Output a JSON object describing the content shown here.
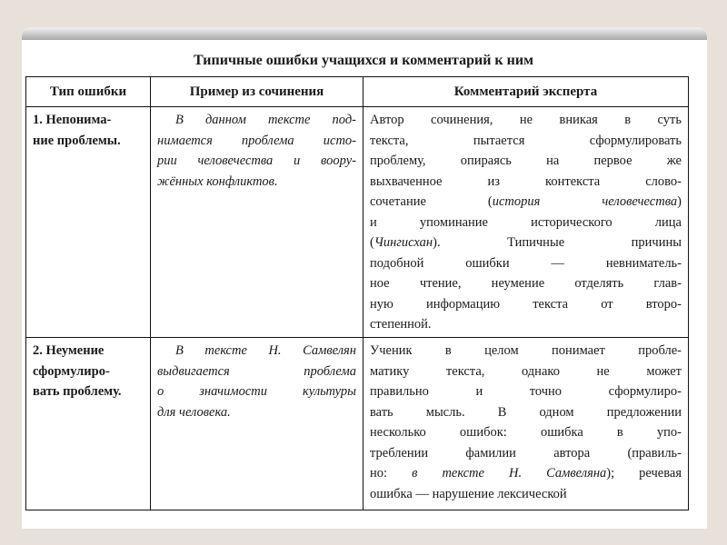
{
  "title": "Типичные ошибки учащихся и комментарий к ним",
  "headers": [
    "Тип ошибки",
    "Пример из сочинения",
    "Комментарий эксперта"
  ],
  "rows": [
    {
      "type": [
        [
          "1. Непонима-"
        ],
        [
          "ние проблемы."
        ]
      ],
      "example": [
        [
          "В данном тексте под-"
        ],
        [
          "нимается проблема исто-"
        ],
        [
          "рии человечества и воору-"
        ],
        [
          "жённых конфликтов."
        ]
      ],
      "comment": [
        [
          "Автор сочинения, не вникая в суть"
        ],
        [
          "текста, пытается сформулировать"
        ],
        [
          "проблему, опираясь на первое же"
        ],
        [
          "выхваченное из контекста слово-"
        ],
        [
          "сочетание (",
          "история человечества",
          ")"
        ],
        [
          "и упоминание исторического лица"
        ],
        [
          "(",
          "Чингисхан",
          "). Типичные причины"
        ],
        [
          "подобной ошибки — невниматель-"
        ],
        [
          "ное чтение, неумение отделять глав-"
        ],
        [
          "ную информацию текста от второ-"
        ],
        [
          "степенной."
        ]
      ]
    },
    {
      "type": [
        [
          "2. Неумение"
        ],
        [
          "сформулиро-"
        ],
        [
          "вать проблему."
        ]
      ],
      "example": [
        [
          "В тексте Н. Самвелян"
        ],
        [
          "выдвигается проблема"
        ],
        [
          "о значимости культуры"
        ],
        [
          "для человека."
        ]
      ],
      "comment": [
        [
          "Ученик в целом понимает пробле-"
        ],
        [
          "матику текста, однако не может"
        ],
        [
          "правильно и точно сформулиро-"
        ],
        [
          "вать мысль. В одном предложении"
        ],
        [
          "несколько ошибок: ошибка в упо-"
        ],
        [
          "треблении фамилии автора (правиль-"
        ],
        [
          "но: ",
          "в тексте Н. Самвеляна",
          "); речевая"
        ],
        [
          "ошибка — нарушение лексической"
        ]
      ]
    }
  ]
}
